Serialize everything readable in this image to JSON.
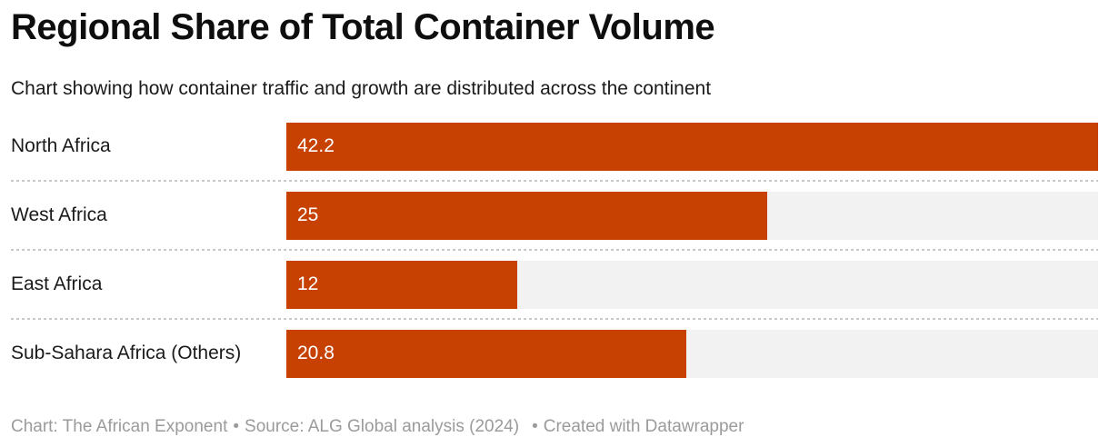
{
  "header": {
    "title": "Regional Share of Total Container Volume",
    "subtitle": "Chart showing how container traffic and growth are distributed across the continent"
  },
  "chart_data": {
    "type": "bar",
    "orientation": "horizontal",
    "title": "Regional Share of Total Container Volume",
    "subtitle": "Chart showing how container traffic and growth are distributed across the continent",
    "categories": [
      "North Africa",
      "West Africa",
      "East Africa",
      "Sub-Sahara Africa (Others)"
    ],
    "values": [
      42.2,
      25,
      12,
      20.8
    ],
    "value_labels": [
      "42.2",
      "25",
      "12",
      "20.8"
    ],
    "xlabel": "",
    "ylabel": "",
    "xlim": [
      0,
      42.2
    ],
    "grid": false,
    "legend": false,
    "value_label_position": "inside-start"
  },
  "footer": {
    "credit": "Chart: The African Exponent",
    "bullet": "•",
    "source": "Source: ALG Global analysis (2024)",
    "created": "Created with Datawrapper"
  },
  "colors": {
    "bar": "#C64102",
    "track": "#F2F2F2",
    "separator": "#C9C9C9",
    "title_text": "#0E0E0E",
    "body_text": "#1A1A1A",
    "value_text": "#FFFFFF",
    "footer_text": "#9B9B9B",
    "background": "#FFFFFF"
  }
}
